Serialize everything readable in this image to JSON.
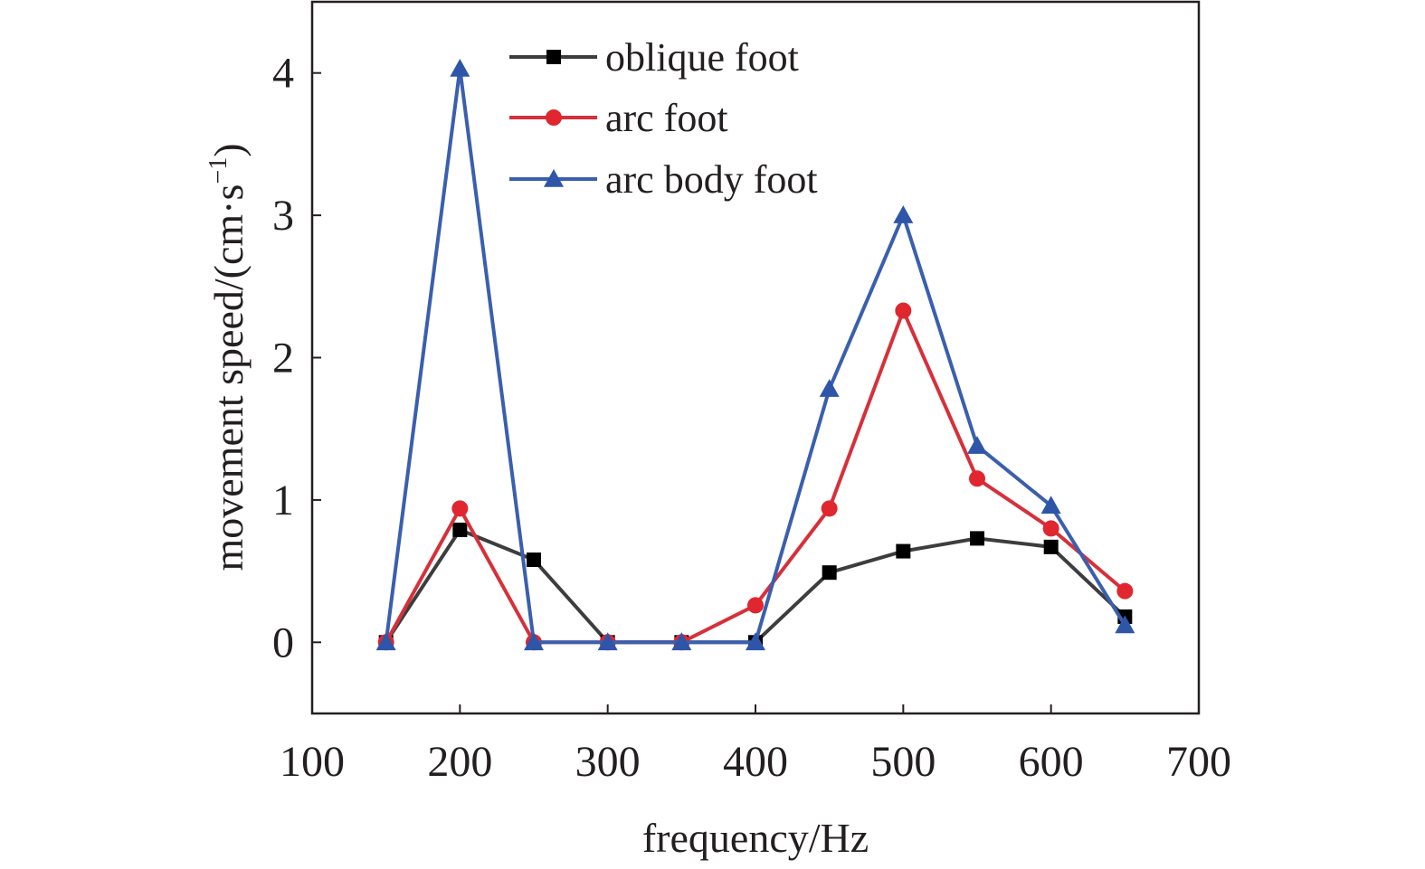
{
  "chart_data": {
    "type": "line",
    "title": "",
    "xlabel": "frequency/Hz",
    "ylabel": "movement speed/(cm·s",
    "ylabel_superscript": "−1",
    "ylabel_close": ")",
    "xlim": [
      100,
      700
    ],
    "ylim": [
      -0.5,
      4.5
    ],
    "xticks": [
      100,
      200,
      300,
      400,
      500,
      600,
      700
    ],
    "yticks": [
      0,
      1,
      2,
      3,
      4
    ],
    "grid": false,
    "legend_position": "top-center",
    "x": [
      150,
      200,
      250,
      300,
      350,
      400,
      450,
      500,
      550,
      600,
      650
    ],
    "series": [
      {
        "name": "oblique foot",
        "marker": "square",
        "color": "#3d3d3d",
        "marker_color": "#000000",
        "values": [
          0,
          0.79,
          0.58,
          0,
          0,
          0,
          0.49,
          0.64,
          0.73,
          0.67,
          0.18
        ]
      },
      {
        "name": "arc foot",
        "marker": "circle",
        "color": "#d7303a",
        "marker_color": "#e0262e",
        "values": [
          0,
          0.94,
          0,
          0,
          0,
          0.26,
          0.94,
          2.33,
          1.15,
          0.8,
          0.36
        ]
      },
      {
        "name": "arc body foot",
        "marker": "triangle",
        "color": "#3a5fae",
        "marker_color": "#2e55a8",
        "values": [
          0,
          4.03,
          0,
          0,
          0,
          0,
          1.78,
          3.0,
          1.38,
          0.96,
          0.12
        ]
      }
    ]
  }
}
